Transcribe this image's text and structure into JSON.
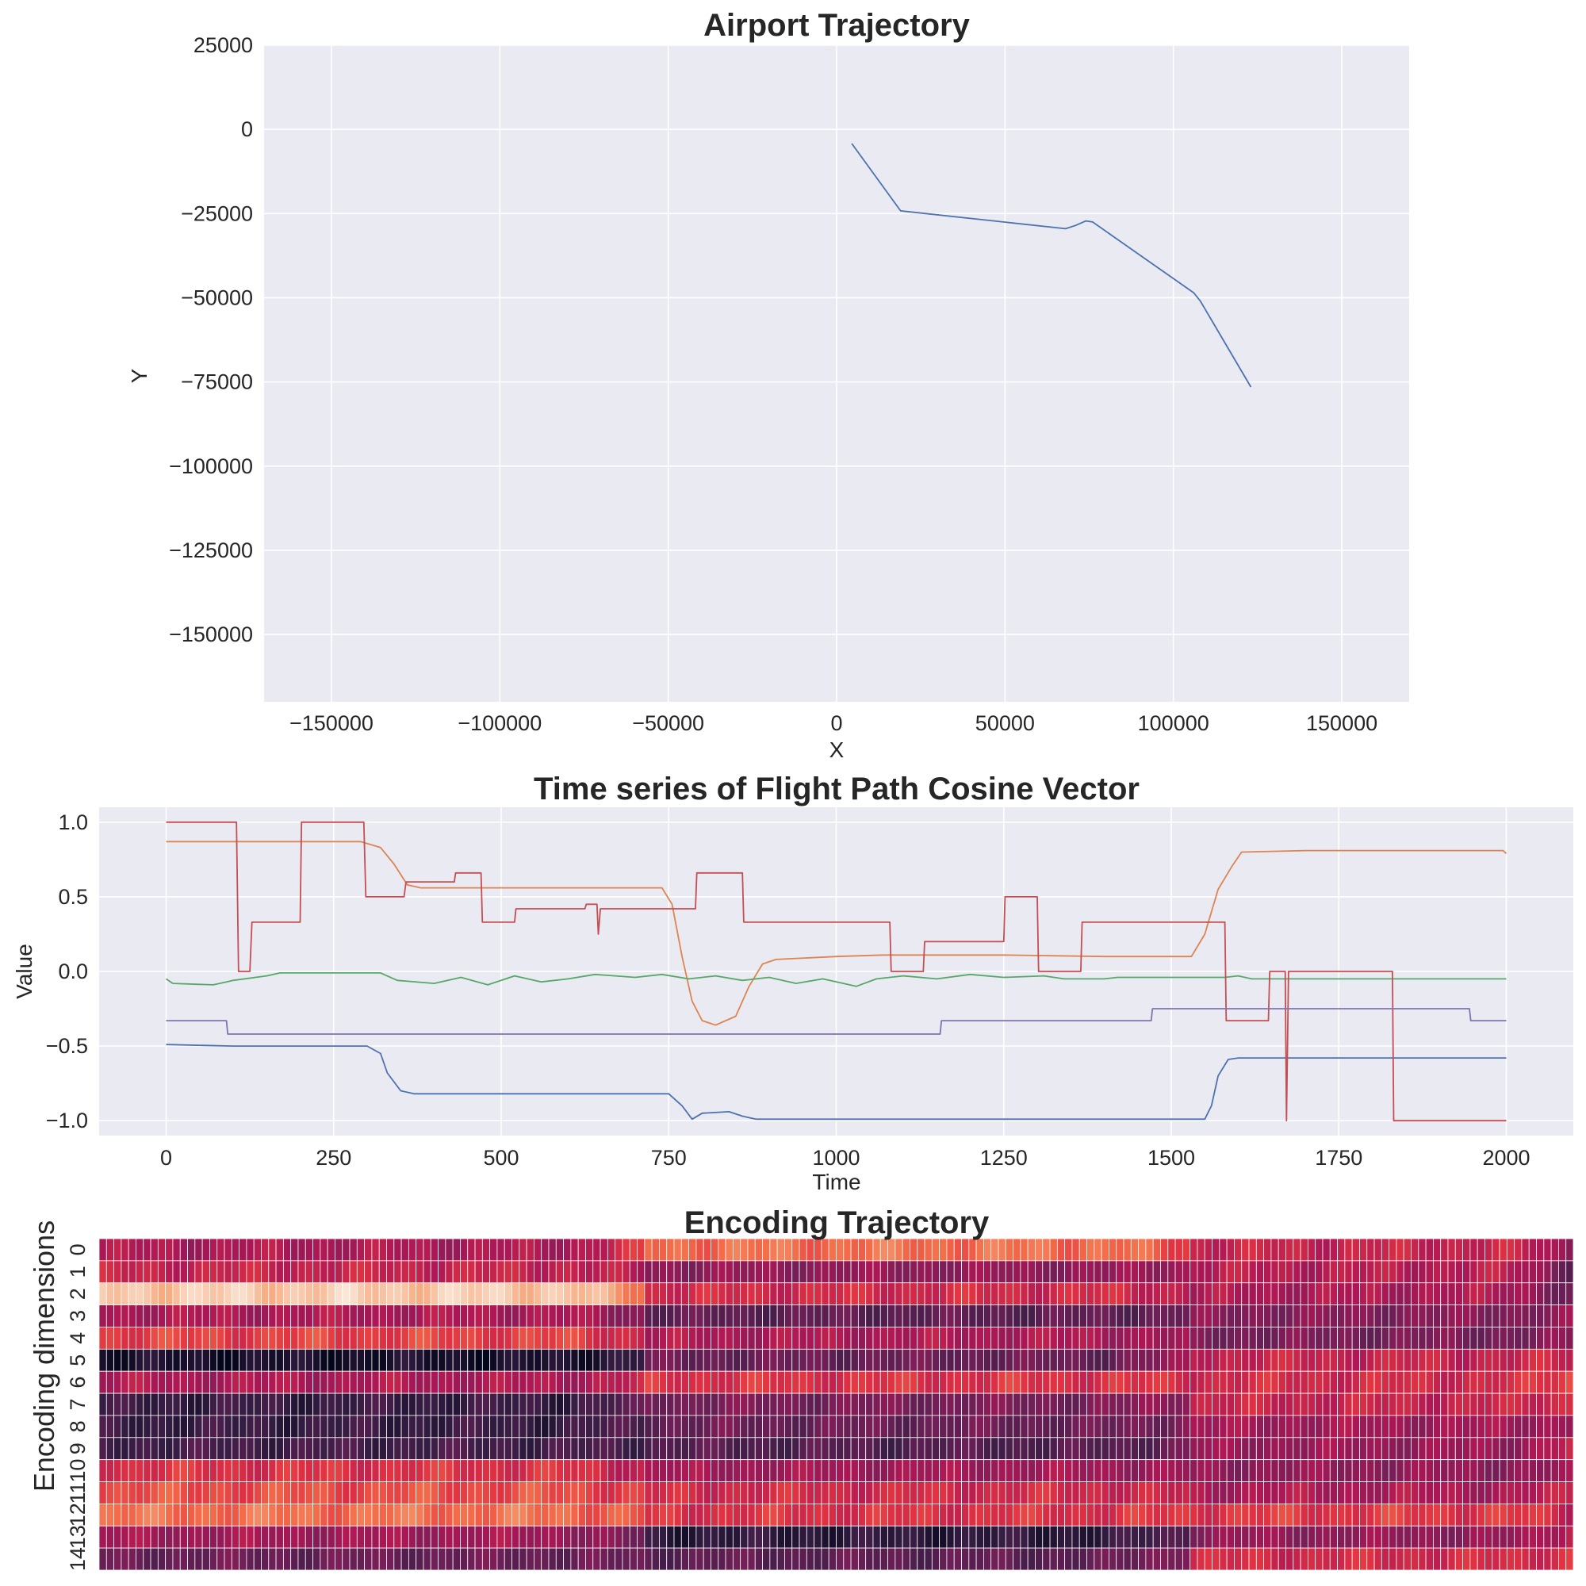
{
  "colors": {
    "plot_bg": "#EAEAF2",
    "grid": "#FFFFFF",
    "series": [
      "#4C72B0",
      "#DD8452",
      "#55A868",
      "#C44E52",
      "#8172B3"
    ]
  },
  "chart_data": [
    {
      "type": "line",
      "title": "Airport Trajectory",
      "xlabel": "X",
      "ylabel": "Y",
      "xlim": [
        -170000,
        170000
      ],
      "ylim": [
        -170000,
        25000
      ],
      "xticks": [
        -150000,
        -100000,
        -50000,
        0,
        50000,
        100000,
        150000
      ],
      "xtick_labels": [
        "−150000",
        "−100000",
        "−50000",
        "0",
        "50000",
        "100000",
        "150000"
      ],
      "yticks": [
        25000,
        0,
        -25000,
        -50000,
        -75000,
        -100000,
        -125000,
        -150000
      ],
      "ytick_labels": [
        "25000",
        "0",
        "−25000",
        "−50000",
        "−75000",
        "−100000",
        "−125000",
        "−150000"
      ],
      "grid": true,
      "series": [
        {
          "points": [
            [
              4500,
              -4200
            ],
            [
              19000,
              -24200
            ],
            [
              68000,
              -29500
            ],
            [
              71000,
              -28500
            ],
            [
              74000,
              -27200
            ],
            [
              76000,
              -27500
            ],
            [
              106000,
              -48500
            ],
            [
              108000,
              -51000
            ],
            [
              123000,
              -76500
            ]
          ]
        }
      ]
    },
    {
      "type": "line",
      "title": "Time series of Flight Path Cosine Vector",
      "xlabel": "Time",
      "ylabel": "Value",
      "xlim": [
        -100,
        2100
      ],
      "ylim": [
        -1.1,
        1.1
      ],
      "xticks": [
        0,
        250,
        500,
        750,
        1000,
        1250,
        1500,
        1750,
        2000
      ],
      "xtick_labels": [
        "0",
        "250",
        "500",
        "750",
        "1000",
        "1250",
        "1500",
        "1750",
        "2000"
      ],
      "yticks": [
        1.0,
        0.5,
        0.0,
        -0.5,
        -1.0
      ],
      "ytick_labels": [
        "1.0",
        "0.5",
        "0.0",
        "−0.5",
        "−1.0"
      ],
      "grid": true,
      "series": [
        {
          "points": [
            [
              0,
              -0.49
            ],
            [
              100,
              -0.5
            ],
            [
              300,
              -0.5
            ],
            [
              320,
              -0.55
            ],
            [
              330,
              -0.68
            ],
            [
              350,
              -0.8
            ],
            [
              370,
              -0.82
            ],
            [
              750,
              -0.82
            ],
            [
              770,
              -0.9
            ],
            [
              785,
              -0.99
            ],
            [
              800,
              -0.95
            ],
            [
              840,
              -0.94
            ],
            [
              860,
              -0.97
            ],
            [
              880,
              -0.99
            ],
            [
              1550,
              -0.99
            ],
            [
              1560,
              -0.9
            ],
            [
              1570,
              -0.7
            ],
            [
              1585,
              -0.59
            ],
            [
              1600,
              -0.58
            ],
            [
              2000,
              -0.58
            ]
          ]
        },
        {
          "points": [
            [
              0,
              0.87
            ],
            [
              290,
              0.87
            ],
            [
              320,
              0.83
            ],
            [
              340,
              0.72
            ],
            [
              360,
              0.58
            ],
            [
              380,
              0.56
            ],
            [
              740,
              0.56
            ],
            [
              755,
              0.45
            ],
            [
              770,
              0.1
            ],
            [
              785,
              -0.2
            ],
            [
              800,
              -0.33
            ],
            [
              820,
              -0.36
            ],
            [
              850,
              -0.3
            ],
            [
              870,
              -0.1
            ],
            [
              890,
              0.05
            ],
            [
              910,
              0.08
            ],
            [
              1000,
              0.1
            ],
            [
              1070,
              0.11
            ],
            [
              1250,
              0.11
            ],
            [
              1400,
              0.1
            ],
            [
              1530,
              0.1
            ],
            [
              1550,
              0.25
            ],
            [
              1570,
              0.55
            ],
            [
              1590,
              0.7
            ],
            [
              1605,
              0.8
            ],
            [
              1700,
              0.81
            ],
            [
              1995,
              0.81
            ],
            [
              2000,
              0.79
            ]
          ]
        },
        {
          "points": [
            [
              0,
              -0.05
            ],
            [
              10,
              -0.08
            ],
            [
              70,
              -0.09
            ],
            [
              80,
              -0.08
            ],
            [
              90,
              -0.07
            ],
            [
              100,
              -0.06
            ],
            [
              150,
              -0.03
            ],
            [
              170,
              -0.01
            ],
            [
              320,
              -0.01
            ],
            [
              345,
              -0.06
            ],
            [
              400,
              -0.08
            ],
            [
              440,
              -0.04
            ],
            [
              480,
              -0.09
            ],
            [
              520,
              -0.03
            ],
            [
              560,
              -0.07
            ],
            [
              600,
              -0.05
            ],
            [
              640,
              -0.02
            ],
            [
              700,
              -0.04
            ],
            [
              740,
              -0.02
            ],
            [
              780,
              -0.05
            ],
            [
              820,
              -0.03
            ],
            [
              860,
              -0.06
            ],
            [
              900,
              -0.04
            ],
            [
              940,
              -0.08
            ],
            [
              980,
              -0.05
            ],
            [
              1030,
              -0.1
            ],
            [
              1060,
              -0.05
            ],
            [
              1100,
              -0.03
            ],
            [
              1150,
              -0.05
            ],
            [
              1200,
              -0.02
            ],
            [
              1250,
              -0.04
            ],
            [
              1310,
              -0.03
            ],
            [
              1340,
              -0.05
            ],
            [
              1400,
              -0.05
            ],
            [
              1420,
              -0.04
            ],
            [
              1450,
              -0.04
            ],
            [
              1580,
              -0.04
            ],
            [
              1600,
              -0.03
            ],
            [
              1620,
              -0.05
            ],
            [
              2000,
              -0.05
            ]
          ]
        },
        {
          "points": [
            [
              0,
              1.0
            ],
            [
              105,
              1.0
            ],
            [
              108,
              0.0
            ],
            [
              125,
              0.0
            ],
            [
              128,
              0.33
            ],
            [
              200,
              0.33
            ],
            [
              202,
              1.0
            ],
            [
              295,
              1.0
            ],
            [
              298,
              0.5
            ],
            [
              355,
              0.5
            ],
            [
              358,
              0.6
            ],
            [
              430,
              0.6
            ],
            [
              432,
              0.66
            ],
            [
              470,
              0.66
            ],
            [
              472,
              0.33
            ],
            [
              520,
              0.33
            ],
            [
              522,
              0.42
            ],
            [
              625,
              0.42
            ],
            [
              627,
              0.45
            ],
            [
              643,
              0.45
            ],
            [
              645,
              0.25
            ],
            [
              648,
              0.42
            ],
            [
              790,
              0.42
            ],
            [
              792,
              0.66
            ],
            [
              860,
              0.66
            ],
            [
              862,
              0.33
            ],
            [
              1080,
              0.33
            ],
            [
              1082,
              0.0
            ],
            [
              1130,
              0.0
            ],
            [
              1132,
              0.2
            ],
            [
              1250,
              0.2
            ],
            [
              1252,
              0.5
            ],
            [
              1300,
              0.5
            ],
            [
              1302,
              0.0
            ],
            [
              1365,
              0.0
            ],
            [
              1367,
              0.33
            ],
            [
              1580,
              0.33
            ],
            [
              1582,
              -0.33
            ],
            [
              1645,
              -0.33
            ],
            [
              1647,
              0.0
            ],
            [
              1670,
              0.0
            ],
            [
              1672,
              -1.0
            ],
            [
              1675,
              0.0
            ],
            [
              1830,
              0.0
            ],
            [
              1832,
              -1.0
            ],
            [
              2000,
              -1.0
            ]
          ]
        },
        {
          "points": [
            [
              0,
              -0.33
            ],
            [
              90,
              -0.33
            ],
            [
              92,
              -0.42
            ],
            [
              1155,
              -0.42
            ],
            [
              1157,
              -0.33
            ],
            [
              1470,
              -0.33
            ],
            [
              1472,
              -0.25
            ],
            [
              1945,
              -0.25
            ],
            [
              1947,
              -0.33
            ],
            [
              2000,
              -0.33
            ]
          ]
        }
      ]
    },
    {
      "type": "heatmap",
      "title": "Encoding Trajectory",
      "ylabel": "Encoding dimensions",
      "row_labels": [
        "0",
        "1",
        "2",
        "3",
        "4",
        "5",
        "6",
        "7",
        "8",
        "9",
        "10",
        "11",
        "12",
        "13",
        "14"
      ],
      "n_columns": 200,
      "colormap": "rocket",
      "segments_columns": [
        0,
        74,
        148,
        200
      ],
      "rows": [
        [
          0.45,
          0.72,
          0.52,
          0.22
        ],
        [
          0.52,
          0.38,
          0.48,
          0.05
        ],
        [
          0.92,
          0.55,
          0.45,
          0.07
        ],
        [
          0.45,
          0.25,
          0.35,
          0.4
        ],
        [
          0.62,
          0.45,
          0.32,
          0.38
        ],
        [
          0.06,
          0.28,
          0.52,
          0.55
        ],
        [
          0.45,
          0.58,
          0.55,
          0.78
        ],
        [
          0.15,
          0.32,
          0.52,
          0.65
        ],
        [
          0.15,
          0.28,
          0.42,
          0.45
        ],
        [
          0.18,
          0.22,
          0.4,
          0.7
        ],
        [
          0.58,
          0.42,
          0.38,
          0.4
        ],
        [
          0.65,
          0.55,
          0.45,
          0.58
        ],
        [
          0.72,
          0.58,
          0.6,
          0.42
        ],
        [
          0.42,
          0.12,
          0.38,
          0.72
        ],
        [
          0.28,
          0.25,
          0.55,
          0.65
        ]
      ]
    }
  ]
}
